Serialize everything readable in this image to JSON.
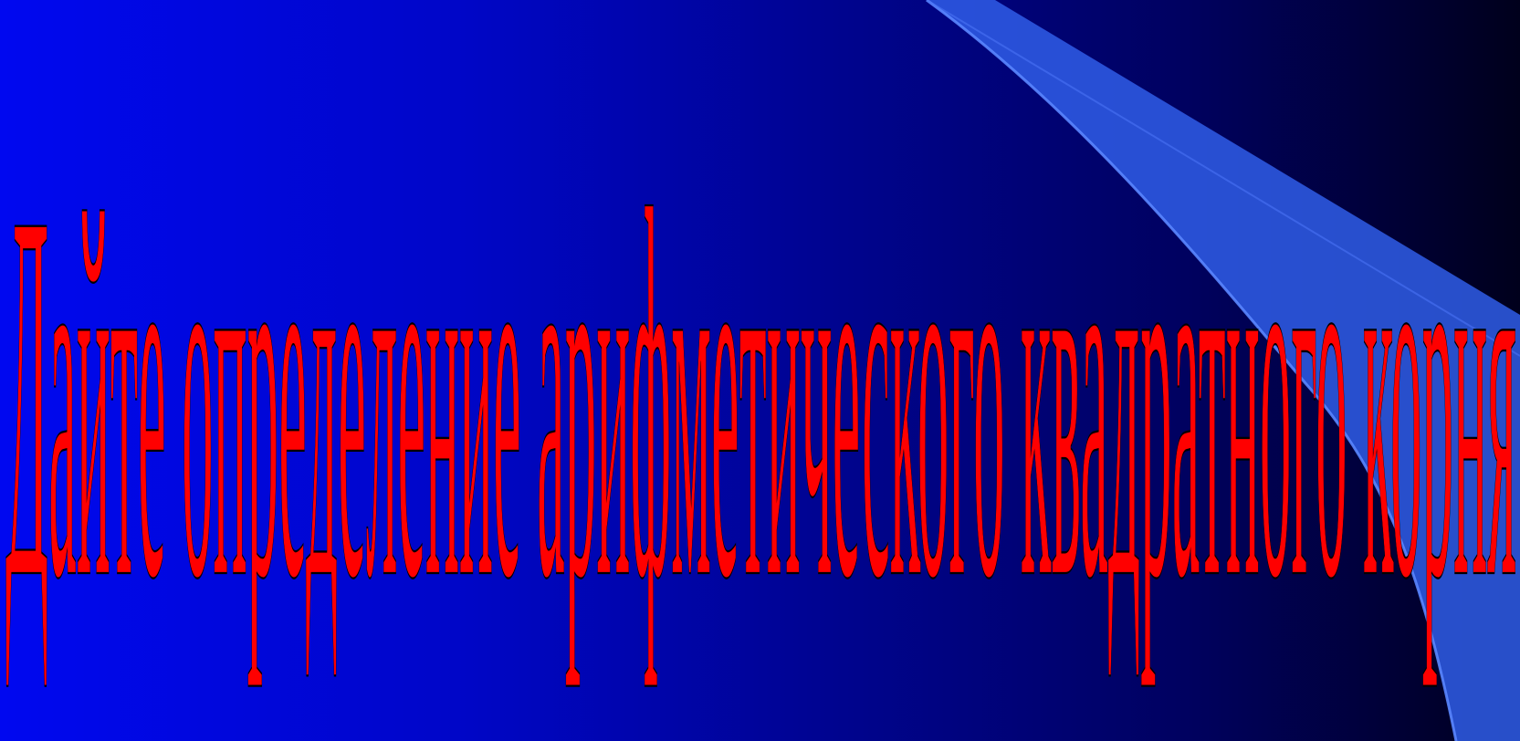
{
  "slide": {
    "title_text": "Дайте определение арифметического квадратного корня",
    "colors": {
      "background_left": "#0008f0",
      "background_right": "#00001c",
      "text_fill": "#ff0000",
      "text_outline": "#000000",
      "swoosh_fill": "#2f5de8"
    }
  }
}
